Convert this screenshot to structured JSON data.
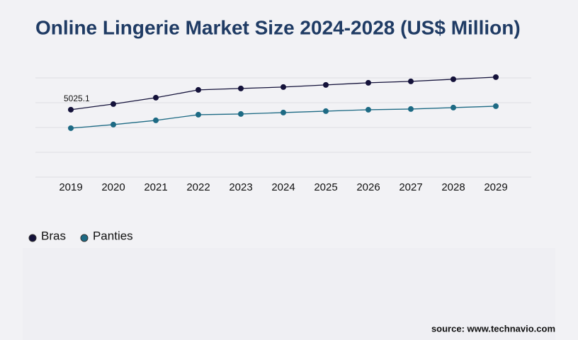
{
  "chart_data": {
    "type": "line",
    "title": "Online Lingerie Market Size 2024-2028 (US$ Million)",
    "categories": [
      "2019",
      "2020",
      "2021",
      "2022",
      "2023",
      "2024",
      "2025",
      "2026",
      "2027",
      "2028",
      "2029"
    ],
    "series": [
      {
        "name": "Bras",
        "color": "#14123a",
        "values": [
          5025.1,
          5445,
          5920,
          6502,
          6608,
          6713,
          6872,
          7030,
          7136,
          7295,
          7453
        ]
      },
      {
        "name": "Panties",
        "color": "#1d6a84",
        "values": [
          3647,
          3912,
          4229,
          4652,
          4705,
          4810,
          4916,
          5022,
          5075,
          5180,
          5286
        ]
      }
    ],
    "ylim": [
      0,
      7500
    ],
    "source": "source: www.technavio.com"
  }
}
